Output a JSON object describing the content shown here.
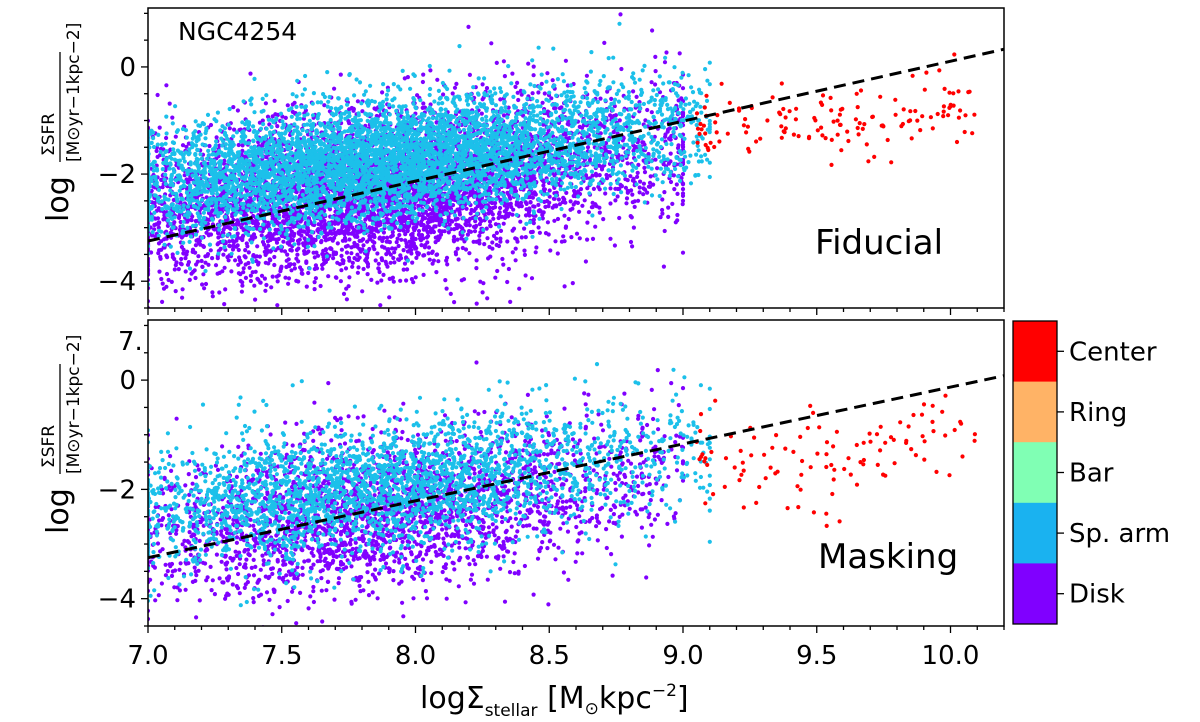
{
  "chart_data": [
    {
      "type": "scatter",
      "panel": "top",
      "galaxy_label": "NGC4254",
      "panel_label": "Fiducial",
      "xlabel": "logΣstellar [M⊙kpc−2]",
      "ylabel": "log ΣSFR / [M⊙yr−1kpc−2]",
      "xlim": [
        7.0,
        10.2
      ],
      "ylim": [
        -4.5,
        1.1
      ],
      "xticks": [
        7.0,
        7.5,
        8.0,
        8.5,
        9.0,
        9.5,
        10.0
      ],
      "xtick_labels": [
        "7.0",
        "7.5",
        "8.0",
        "8.5",
        "9.0",
        "9.5",
        "10.0"
      ],
      "yticks": [
        0,
        -2,
        -4
      ],
      "ytick_labels": [
        "0",
        "−2",
        "−4"
      ],
      "fit_line": {
        "style": "dashed",
        "x": [
          7.0,
          10.2
        ],
        "y": [
          -3.25,
          0.33
        ]
      },
      "series": [
        {
          "name": "Disk",
          "color": "#8000ff",
          "x_range": [
            7.0,
            9.0
          ],
          "y_center_at_x": [
            [
              7.0,
              -2.7
            ],
            [
              8.0,
              -2.3
            ],
            [
              9.0,
              -1.4
            ]
          ],
          "spread": 0.75,
          "density": "high"
        },
        {
          "name": "Sp. arm",
          "color": "#1cc0ea",
          "x_range": [
            7.0,
            9.1
          ],
          "y_center_at_x": [
            [
              7.0,
              -2.2
            ],
            [
              8.0,
              -1.7
            ],
            [
              9.0,
              -1.1
            ]
          ],
          "spread": 0.55,
          "density": "high"
        },
        {
          "name": "Center",
          "color": "#ff0000",
          "x_range": [
            9.05,
            10.1
          ],
          "y_center_at_x": [
            [
              9.1,
              -1.1
            ],
            [
              9.5,
              -1.1
            ],
            [
              10.0,
              -0.75
            ]
          ],
          "spread": 0.3,
          "density": "low"
        }
      ]
    },
    {
      "type": "scatter",
      "panel": "bottom",
      "panel_label": "Masking",
      "xlabel": "logΣstellar [M⊙kpc−2]",
      "ylabel": "log ΣSFR / [M⊙yr−1kpc−2]",
      "xlim": [
        7.0,
        10.2
      ],
      "ylim": [
        -4.5,
        1.1
      ],
      "xticks": [
        7.0,
        7.5,
        8.0,
        8.5,
        9.0,
        9.5,
        10.0
      ],
      "xtick_labels": [
        "7.0",
        "7.5",
        "8.0",
        "8.5",
        "9.0",
        "9.5",
        "10.0"
      ],
      "yticks": [
        0,
        -2,
        -4
      ],
      "ytick_labels": [
        "0",
        "−2",
        "−4"
      ],
      "clipped_tick_label": "7.",
      "fit_line": {
        "style": "dashed",
        "x": [
          7.0,
          10.2
        ],
        "y": [
          -3.25,
          0.08
        ]
      },
      "series": [
        {
          "name": "Disk",
          "color": "#8000ff",
          "x_range": [
            7.0,
            9.0
          ],
          "y_center_at_x": [
            [
              7.0,
              -2.8
            ],
            [
              8.0,
              -2.4
            ],
            [
              9.0,
              -1.6
            ]
          ],
          "spread": 0.7,
          "density": "medium"
        },
        {
          "name": "Sp. arm",
          "color": "#1cc0ea",
          "x_range": [
            7.0,
            9.1
          ],
          "y_center_at_x": [
            [
              7.0,
              -2.4
            ],
            [
              8.0,
              -1.9
            ],
            [
              9.0,
              -1.3
            ]
          ],
          "spread": 0.6,
          "density": "medium"
        },
        {
          "name": "Center",
          "color": "#ff0000",
          "x_range": [
            9.05,
            10.1
          ],
          "y_center_at_x": [
            [
              9.1,
              -1.4
            ],
            [
              9.5,
              -1.6
            ],
            [
              10.0,
              -1.0
            ]
          ],
          "spread": 0.45,
          "density": "low"
        }
      ]
    }
  ],
  "colorbar": {
    "categories": [
      {
        "label": "Center",
        "color": "#ff0000"
      },
      {
        "label": "Ring",
        "color": "#ffb366"
      },
      {
        "label": "Bar",
        "color": "#80ffb4"
      },
      {
        "label": "Sp. arm",
        "color": "#1ab2f0"
      },
      {
        "label": "Disk",
        "color": "#8000ff"
      }
    ]
  },
  "labels": {
    "galaxy": "NGC4254",
    "fiducial": "Fiducial",
    "masking": "Masking",
    "clipped_tick": "7.",
    "x_axis_main": "logΣ",
    "x_axis_sub": "stellar",
    "x_axis_unit_open": " [M",
    "x_axis_sun": "⊙",
    "x_axis_unit_rest": "kpc",
    "x_axis_exp": "−2",
    "x_axis_close": "]",
    "y_log": "log",
    "y_numer": "ΣSFR",
    "y_denom": "[M⊙yr−1kpc−2]"
  }
}
